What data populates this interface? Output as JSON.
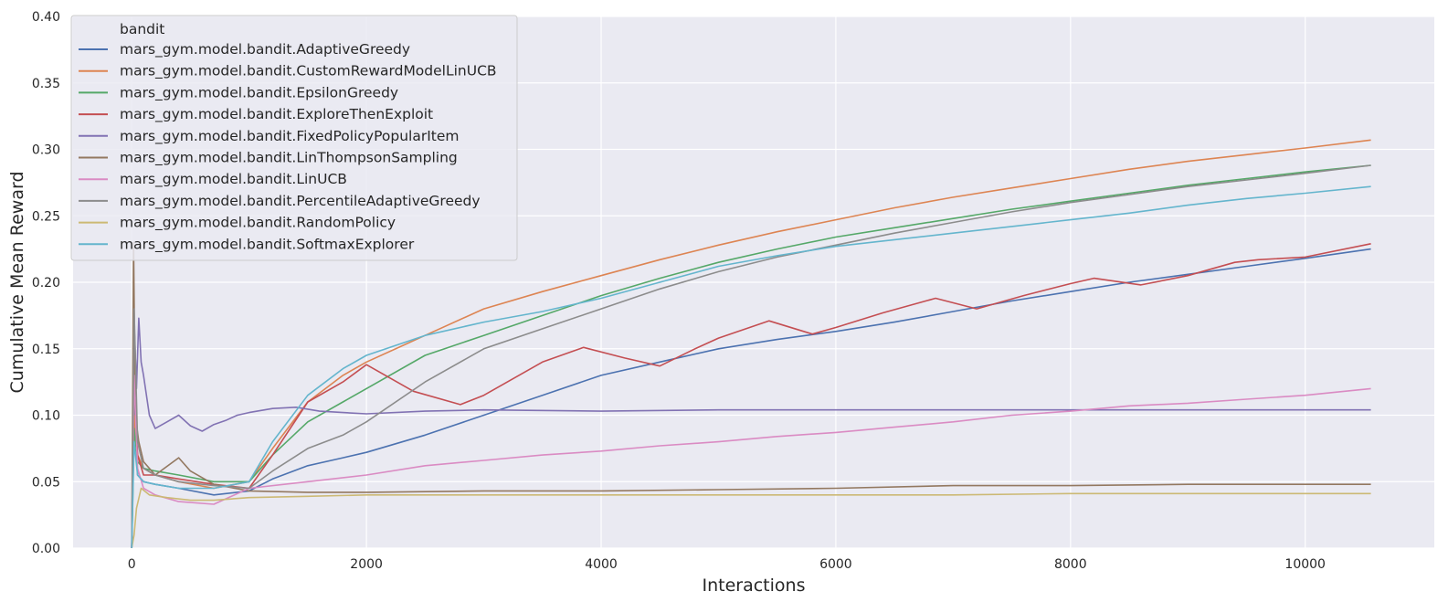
{
  "chart_data": {
    "type": "line",
    "title": "",
    "xlabel": "Interactions",
    "ylabel": "Cumulative Mean Reward",
    "xlim": [
      -500,
      11100
    ],
    "ylim": [
      0.0,
      0.4
    ],
    "xticks": [
      0,
      2000,
      4000,
      6000,
      8000,
      10000
    ],
    "xtick_labels": [
      "0",
      "2000",
      "4000",
      "6000",
      "8000",
      "10000"
    ],
    "yticks": [
      0.0,
      0.05,
      0.1,
      0.15,
      0.2,
      0.25,
      0.3,
      0.35,
      0.4
    ],
    "ytick_labels": [
      "0.00",
      "0.05",
      "0.10",
      "0.15",
      "0.20",
      "0.25",
      "0.30",
      "0.35",
      "0.40"
    ],
    "grid": true,
    "legend": {
      "title": "bandit",
      "placement": "upper-left"
    },
    "series": [
      {
        "name": "mars_gym.model.bandit.AdaptiveGreedy",
        "color": "#4c72b0",
        "x": [
          0,
          20,
          50,
          100,
          200,
          400,
          700,
          1000,
          1200,
          1500,
          1800,
          2000,
          2500,
          3000,
          3500,
          4000,
          4500,
          5000,
          5500,
          6000,
          6500,
          7000,
          7500,
          8000,
          8500,
          9000,
          9500,
          10000,
          10560
        ],
        "y": [
          0.0,
          0.12,
          0.055,
          0.05,
          0.048,
          0.045,
          0.04,
          0.043,
          0.052,
          0.062,
          0.068,
          0.072,
          0.085,
          0.1,
          0.115,
          0.13,
          0.14,
          0.15,
          0.157,
          0.163,
          0.17,
          0.178,
          0.186,
          0.193,
          0.2,
          0.206,
          0.212,
          0.218,
          0.225
        ]
      },
      {
        "name": "mars_gym.model.bandit.CustomRewardModelLinUCB",
        "color": "#dd8452",
        "x": [
          0,
          20,
          50,
          100,
          200,
          400,
          700,
          1000,
          1200,
          1500,
          1800,
          2000,
          2500,
          3000,
          3500,
          4000,
          4500,
          5000,
          5500,
          6000,
          6500,
          7000,
          7500,
          8000,
          8500,
          9000,
          9500,
          10000,
          10560
        ],
        "y": [
          0.0,
          0.1,
          0.07,
          0.06,
          0.055,
          0.05,
          0.045,
          0.05,
          0.075,
          0.11,
          0.13,
          0.14,
          0.16,
          0.18,
          0.193,
          0.205,
          0.217,
          0.228,
          0.238,
          0.247,
          0.256,
          0.264,
          0.271,
          0.278,
          0.285,
          0.291,
          0.296,
          0.301,
          0.307
        ]
      },
      {
        "name": "mars_gym.model.bandit.EpsilonGreedy",
        "color": "#55a868",
        "x": [
          0,
          20,
          50,
          100,
          200,
          400,
          700,
          1000,
          1200,
          1500,
          1800,
          2000,
          2500,
          3000,
          3500,
          4000,
          4500,
          5000,
          5500,
          6000,
          6500,
          7000,
          7500,
          8000,
          8500,
          9000,
          9500,
          10000,
          10560
        ],
        "y": [
          0.0,
          0.09,
          0.065,
          0.06,
          0.058,
          0.055,
          0.05,
          0.05,
          0.07,
          0.095,
          0.11,
          0.12,
          0.145,
          0.16,
          0.175,
          0.19,
          0.203,
          0.215,
          0.225,
          0.234,
          0.241,
          0.248,
          0.255,
          0.261,
          0.267,
          0.273,
          0.278,
          0.283,
          0.288
        ]
      },
      {
        "name": "mars_gym.model.bandit.ExploreThenExploit",
        "color": "#c44e52",
        "x": [
          0,
          20,
          50,
          100,
          200,
          400,
          700,
          1000,
          1200,
          1500,
          1800,
          2000,
          2400,
          2800,
          3000,
          3500,
          3850,
          4200,
          4500,
          4800,
          5000,
          5430,
          5800,
          6000,
          6400,
          6850,
          7200,
          7600,
          8000,
          8200,
          8600,
          9000,
          9400,
          9600,
          10000,
          10560
        ],
        "y": [
          0.0,
          0.13,
          0.07,
          0.055,
          0.055,
          0.052,
          0.048,
          0.045,
          0.07,
          0.11,
          0.125,
          0.138,
          0.118,
          0.108,
          0.115,
          0.14,
          0.151,
          0.143,
          0.137,
          0.15,
          0.158,
          0.171,
          0.161,
          0.166,
          0.177,
          0.188,
          0.18,
          0.19,
          0.199,
          0.203,
          0.198,
          0.205,
          0.215,
          0.217,
          0.219,
          0.229
        ]
      },
      {
        "name": "mars_gym.model.bandit.FixedPolicyPopularItem",
        "color": "#8172b3",
        "x": [
          0,
          20,
          40,
          60,
          80,
          100,
          150,
          200,
          300,
          400,
          500,
          600,
          700,
          800,
          900,
          1000,
          1200,
          1400,
          1600,
          1800,
          2000,
          2500,
          3000,
          4000,
          5000,
          6000,
          7000,
          8000,
          9000,
          10000,
          10560
        ],
        "y": [
          0.0,
          0.17,
          0.12,
          0.173,
          0.14,
          0.13,
          0.1,
          0.09,
          0.095,
          0.1,
          0.092,
          0.088,
          0.093,
          0.096,
          0.1,
          0.102,
          0.105,
          0.106,
          0.103,
          0.102,
          0.101,
          0.103,
          0.104,
          0.103,
          0.104,
          0.104,
          0.104,
          0.104,
          0.104,
          0.104,
          0.104
        ]
      },
      {
        "name": "mars_gym.model.bandit.LinThompsonSampling",
        "color": "#937860",
        "x": [
          0,
          15,
          30,
          60,
          100,
          200,
          400,
          500,
          700,
          1000,
          1500,
          2000,
          3000,
          4000,
          5000,
          6000,
          7000,
          8000,
          9000,
          10000,
          10560
        ],
        "y": [
          0.0,
          0.23,
          0.1,
          0.08,
          0.065,
          0.055,
          0.068,
          0.058,
          0.048,
          0.043,
          0.042,
          0.042,
          0.043,
          0.043,
          0.044,
          0.045,
          0.047,
          0.047,
          0.048,
          0.048,
          0.048
        ]
      },
      {
        "name": "mars_gym.model.bandit.LinUCB",
        "color": "#da8bc3",
        "x": [
          0,
          20,
          50,
          100,
          200,
          400,
          700,
          1000,
          1500,
          2000,
          2500,
          3000,
          3500,
          4000,
          4500,
          5000,
          5500,
          6000,
          6500,
          7000,
          7500,
          8000,
          8500,
          9000,
          9500,
          10000,
          10560
        ],
        "y": [
          0.0,
          0.13,
          0.06,
          0.045,
          0.04,
          0.035,
          0.033,
          0.045,
          0.05,
          0.055,
          0.062,
          0.066,
          0.07,
          0.073,
          0.077,
          0.08,
          0.084,
          0.087,
          0.091,
          0.095,
          0.1,
          0.103,
          0.107,
          0.109,
          0.112,
          0.115,
          0.12
        ]
      },
      {
        "name": "mars_gym.model.bandit.PercentileAdaptiveGreedy",
        "color": "#8c8c8c",
        "x": [
          0,
          20,
          50,
          100,
          200,
          400,
          700,
          1000,
          1200,
          1500,
          1800,
          2000,
          2500,
          3000,
          3500,
          4000,
          4500,
          5000,
          5500,
          6000,
          6500,
          7000,
          7500,
          8000,
          8500,
          9000,
          9500,
          10000,
          10560
        ],
        "y": [
          0.0,
          0.18,
          0.08,
          0.06,
          0.055,
          0.05,
          0.047,
          0.045,
          0.058,
          0.075,
          0.085,
          0.095,
          0.125,
          0.15,
          0.165,
          0.18,
          0.195,
          0.208,
          0.219,
          0.228,
          0.237,
          0.245,
          0.253,
          0.26,
          0.266,
          0.272,
          0.277,
          0.282,
          0.288
        ]
      },
      {
        "name": "mars_gym.model.bandit.RandomPolicy",
        "color": "#ccb974",
        "x": [
          0,
          20,
          40,
          80,
          150,
          300,
          500,
          700,
          1000,
          1500,
          2000,
          3000,
          4000,
          5000,
          6000,
          7000,
          8000,
          9000,
          10000,
          10560
        ],
        "y": [
          0.0,
          0.01,
          0.03,
          0.045,
          0.04,
          0.038,
          0.036,
          0.036,
          0.038,
          0.039,
          0.04,
          0.04,
          0.04,
          0.04,
          0.04,
          0.04,
          0.041,
          0.041,
          0.041,
          0.041
        ]
      },
      {
        "name": "mars_gym.model.bandit.SoftmaxExplorer",
        "color": "#64b5cd",
        "x": [
          0,
          20,
          50,
          100,
          200,
          400,
          700,
          1000,
          1200,
          1500,
          1800,
          2000,
          2500,
          3000,
          3500,
          4000,
          4500,
          5000,
          5500,
          6000,
          6500,
          7000,
          7500,
          8000,
          8500,
          9000,
          9500,
          10000,
          10560
        ],
        "y": [
          0.0,
          0.08,
          0.055,
          0.05,
          0.048,
          0.045,
          0.045,
          0.05,
          0.08,
          0.115,
          0.135,
          0.145,
          0.16,
          0.17,
          0.178,
          0.188,
          0.2,
          0.212,
          0.22,
          0.227,
          0.232,
          0.237,
          0.242,
          0.247,
          0.252,
          0.258,
          0.263,
          0.267,
          0.272
        ]
      }
    ]
  }
}
